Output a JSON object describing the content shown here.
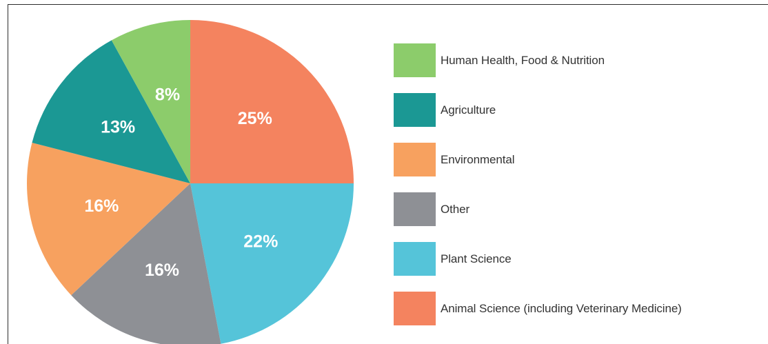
{
  "chart_data": {
    "type": "pie",
    "title": "",
    "slices": [
      {
        "label": "Animal Science (including Veterinary Medicine)",
        "value": 25,
        "display": "25%",
        "color": "#f4835f"
      },
      {
        "label": "Plant Science",
        "value": 22,
        "display": "22%",
        "color": "#55c4d9"
      },
      {
        "label": "Other",
        "value": 16,
        "display": "16%",
        "color": "#8e9095"
      },
      {
        "label": "Environmental",
        "value": 16,
        "display": "16%",
        "color": "#f7a15f"
      },
      {
        "label": "Agriculture",
        "value": 13,
        "display": "13%",
        "color": "#1b9894"
      },
      {
        "label": "Human Health, Food & Nutrition",
        "value": 8,
        "display": "8%",
        "color": "#8ccc6b"
      }
    ],
    "legend": {
      "position": "right",
      "entries": [
        {
          "label": "Human Health, Food & Nutrition",
          "color": "#8ccc6b"
        },
        {
          "label": "Agriculture",
          "color": "#1b9894"
        },
        {
          "label": "Environmental",
          "color": "#f7a15f"
        },
        {
          "label": "Other",
          "color": "#8e9095"
        },
        {
          "label": "Plant Science",
          "color": "#55c4d9"
        },
        {
          "label": "Animal Science (including Veterinary Medicine)",
          "color": "#f4835f"
        }
      ]
    }
  }
}
